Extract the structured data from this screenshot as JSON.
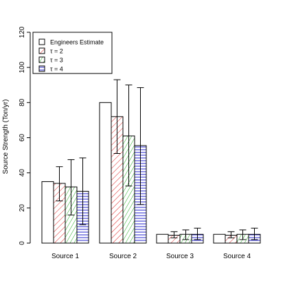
{
  "chart_data": {
    "type": "bar",
    "title": "",
    "xlabel": "",
    "ylabel": "Source Strength (Ton/yr)",
    "ylim": [
      0,
      120
    ],
    "yticks": [
      0,
      20,
      40,
      60,
      80,
      100,
      120
    ],
    "categories": [
      "Source 1",
      "Source 2",
      "Source 3",
      "Source 4"
    ],
    "grid": false,
    "legend_position": "top-left",
    "series": [
      {
        "name": "Engineers Estimate",
        "values": [
          35,
          80,
          5,
          5
        ],
        "error_low": [
          null,
          null,
          null,
          null
        ],
        "error_high": [
          null,
          null,
          null,
          null
        ],
        "color": "#000000",
        "hatch": "none"
      },
      {
        "name": "τ = 2",
        "values": [
          34,
          72,
          4.5,
          4.5
        ],
        "error_low": [
          24,
          51,
          3,
          3
        ],
        "error_high": [
          43.5,
          93,
          6.5,
          6.5
        ],
        "color": "#dd2222",
        "hatch": "diag45"
      },
      {
        "name": "τ = 3",
        "values": [
          32,
          61,
          5,
          5
        ],
        "error_low": [
          16,
          32.5,
          2,
          2
        ],
        "error_high": [
          47.5,
          90,
          7.5,
          7.5
        ],
        "color": "#22aa22",
        "hatch": "diag60"
      },
      {
        "name": "τ = 4",
        "values": [
          29.5,
          55.5,
          5,
          5
        ],
        "error_low": [
          10.5,
          22,
          2,
          2
        ],
        "error_high": [
          48.5,
          88.5,
          8.5,
          8.5
        ],
        "color": "#2222cc",
        "hatch": "horizontal"
      }
    ]
  }
}
